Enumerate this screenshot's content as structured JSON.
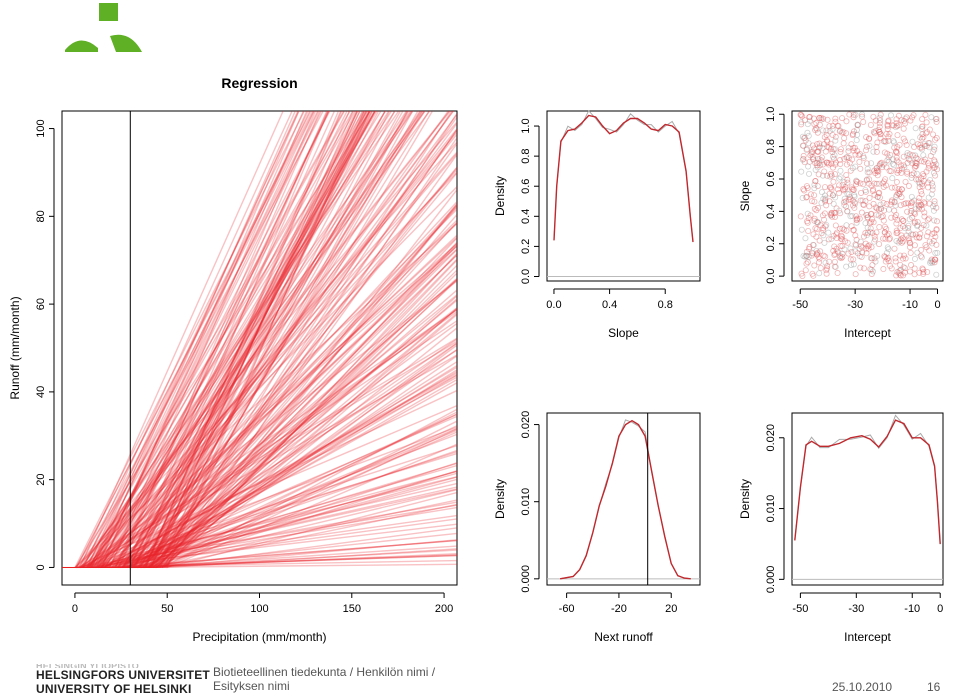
{
  "brand": {
    "logo_color": "#5fb025",
    "university_fi": "HELSINGIN YLIOPISTO",
    "university_sv": "HELSINGFORS UNIVERSITET",
    "university_en": "UNIVERSITY OF HELSINKI"
  },
  "footer": {
    "description_line1": "Biotieteellinen tiedekunta / Henkilön nimi /",
    "description_line2": "Esityksen nimi",
    "date": "25.10.2010",
    "page": "16"
  },
  "chart_data": [
    {
      "type": "line",
      "title": "Regression",
      "xlabel": "Precipitation (mm/month)",
      "ylabel": "Runoff (mm/month)",
      "xlim": [
        -7,
        207
      ],
      "ylim": [
        -4,
        104
      ],
      "xticks": [
        "0",
        "50",
        "100",
        "150",
        "200"
      ],
      "yticks": [
        "0",
        "20",
        "40",
        "60",
        "80",
        "100"
      ],
      "vline_x": 30,
      "line_color": "#e8232a",
      "lines": {
        "model": "runoff = slope * (precipitation - |intercept|)",
        "slope_range": [
          0,
          1
        ],
        "intercept_range": [
          -50,
          0
        ],
        "count": 260
      }
    },
    {
      "type": "line",
      "title": "",
      "xlabel": "Slope",
      "ylabel": "Density",
      "xlim": [
        -0.05,
        1.05
      ],
      "ylim": [
        -0.03,
        1.1
      ],
      "xticks": [
        "0.0",
        "0.4",
        "0.8"
      ],
      "yticks": [
        "0.0",
        "0.2",
        "0.4",
        "0.6",
        "0.8",
        "1.0"
      ],
      "series": [
        {
          "x": [
            0,
            0.02,
            0.05,
            0.1,
            0.15,
            0.2,
            0.25,
            0.3,
            0.35,
            0.4,
            0.45,
            0.5,
            0.55,
            0.6,
            0.65,
            0.7,
            0.75,
            0.8,
            0.85,
            0.9,
            0.95,
            0.98,
            1.0
          ],
          "values": [
            0.24,
            0.6,
            0.9,
            0.97,
            0.98,
            1.02,
            1.07,
            1.06,
            1.0,
            0.95,
            0.97,
            1.02,
            1.05,
            1.05,
            1.02,
            0.98,
            0.97,
            1.01,
            1.0,
            0.96,
            0.7,
            0.4,
            0.23
          ]
        }
      ],
      "baseline": 0
    },
    {
      "type": "scatter",
      "title": "",
      "xlabel": "Intercept",
      "ylabel": "Slope",
      "xlim": [
        -53,
        2
      ],
      "ylim": [
        -0.03,
        1.02
      ],
      "xticks": [
        "-50",
        "-30",
        "-10",
        "0"
      ],
      "yticks": [
        "0.0",
        "0.2",
        "0.4",
        "0.6",
        "0.8",
        "1.0"
      ],
      "points": {
        "x_range": [
          -50,
          0
        ],
        "y_range": [
          0,
          1
        ],
        "count": 900,
        "distribution": "uniform"
      }
    },
    {
      "type": "line",
      "title": "",
      "xlabel": "Next runoff",
      "ylabel": "Density",
      "xlim": [
        -75,
        42
      ],
      "ylim": [
        -0.0008,
        0.0215
      ],
      "xticks": [
        "-60",
        "-20",
        "20"
      ],
      "yticks": [
        "0.000",
        "0.010",
        "0.020"
      ],
      "vline_x": 2,
      "series": [
        {
          "x": [
            -65,
            -55,
            -50,
            -45,
            -40,
            -35,
            -30,
            -25,
            -20,
            -15,
            -10,
            -5,
            0,
            5,
            10,
            15,
            20,
            25,
            30,
            35
          ],
          "values": [
            0,
            0.0003,
            0.0012,
            0.003,
            0.006,
            0.0095,
            0.012,
            0.015,
            0.0185,
            0.02,
            0.0205,
            0.02,
            0.0185,
            0.014,
            0.0095,
            0.0055,
            0.002,
            0.0004,
            0.0001,
            0
          ]
        }
      ],
      "baseline": 0
    },
    {
      "type": "line",
      "title": "",
      "xlabel": "Intercept",
      "ylabel": "Density",
      "xlim": [
        -53,
        1
      ],
      "ylim": [
        -0.0008,
        0.0235
      ],
      "xticks": [
        "-50",
        "-30",
        "-10",
        "0"
      ],
      "yticks": [
        "0.000",
        "0.010",
        "0.020"
      ],
      "series": [
        {
          "x": [
            -52,
            -50,
            -48,
            -46,
            -43,
            -40,
            -36,
            -32,
            -28,
            -25,
            -22,
            -19,
            -16,
            -13,
            -10,
            -7,
            -4,
            -2,
            -1,
            0
          ],
          "values": [
            0.0055,
            0.013,
            0.019,
            0.0195,
            0.0188,
            0.0188,
            0.0192,
            0.02,
            0.0203,
            0.0198,
            0.0187,
            0.0202,
            0.0225,
            0.022,
            0.02,
            0.02,
            0.019,
            0.016,
            0.011,
            0.005
          ]
        }
      ],
      "baseline": 0
    }
  ]
}
